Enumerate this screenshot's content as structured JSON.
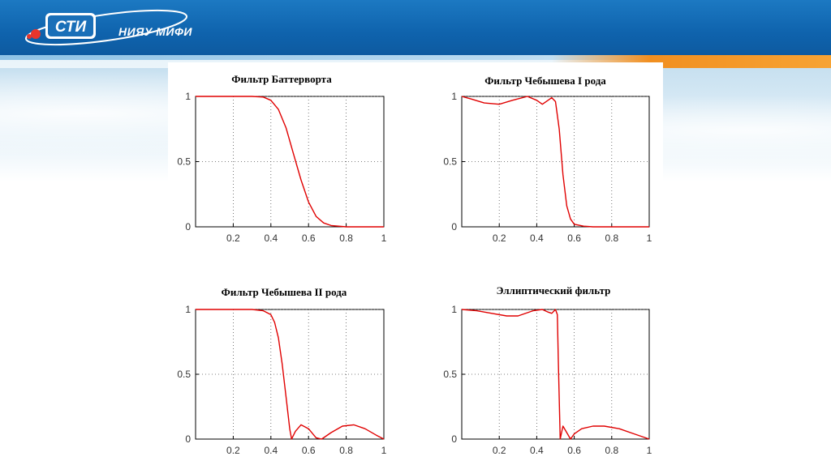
{
  "header": {
    "logo_text": "СТИ",
    "logo_subtitle": "НИЯУ МИФИ",
    "brand_color": "#0f63ad",
    "accent_color": "#f18f20"
  },
  "chart_data": [
    {
      "type": "line",
      "title": "Фильтр Баттерворта",
      "xlim": [
        0,
        1
      ],
      "ylim": [
        0,
        1
      ],
      "xticks": [
        "0.2",
        "0.4",
        "0.6",
        "0.8",
        "1"
      ],
      "yticks": [
        "0",
        "0.5",
        "1"
      ],
      "grid": true,
      "line_color": "#e00000",
      "x": [
        0.0,
        0.3,
        0.36,
        0.4,
        0.44,
        0.48,
        0.52,
        0.56,
        0.6,
        0.64,
        0.68,
        0.72,
        0.8,
        1.0
      ],
      "y": [
        1.0,
        1.0,
        0.995,
        0.97,
        0.9,
        0.76,
        0.56,
        0.36,
        0.19,
        0.08,
        0.03,
        0.01,
        0.0,
        0.0
      ]
    },
    {
      "type": "line",
      "title": "Фильтр Чебышева I рода",
      "xlim": [
        0,
        1
      ],
      "ylim": [
        0,
        1
      ],
      "xticks": [
        "0.2",
        "0.4",
        "0.6",
        "0.8",
        "1"
      ],
      "yticks": [
        "0",
        "0.5",
        "1"
      ],
      "grid": true,
      "line_color": "#e00000",
      "x": [
        0.0,
        0.05,
        0.12,
        0.2,
        0.27,
        0.35,
        0.4,
        0.43,
        0.46,
        0.48,
        0.5,
        0.52,
        0.54,
        0.56,
        0.58,
        0.6,
        0.65,
        0.7,
        0.8,
        1.0
      ],
      "y": [
        1.0,
        0.98,
        0.95,
        0.94,
        0.97,
        1.0,
        0.97,
        0.94,
        0.97,
        0.99,
        0.96,
        0.75,
        0.4,
        0.16,
        0.06,
        0.02,
        0.005,
        0.0,
        0.0,
        0.0
      ]
    },
    {
      "type": "line",
      "title": "Фильтр Чебышева II рода",
      "xlim": [
        0,
        1
      ],
      "ylim": [
        0,
        1
      ],
      "xticks": [
        "0.2",
        "0.4",
        "0.6",
        "0.8",
        "1"
      ],
      "yticks": [
        "0",
        "0.5",
        "1"
      ],
      "grid": true,
      "line_color": "#e00000",
      "x": [
        0.0,
        0.3,
        0.36,
        0.4,
        0.42,
        0.44,
        0.46,
        0.48,
        0.5,
        0.51,
        0.53,
        0.56,
        0.6,
        0.64,
        0.67,
        0.72,
        0.78,
        0.84,
        0.9,
        0.96,
        1.0
      ],
      "y": [
        1.0,
        1.0,
        0.99,
        0.96,
        0.9,
        0.78,
        0.58,
        0.33,
        0.08,
        0.0,
        0.06,
        0.11,
        0.08,
        0.01,
        0.0,
        0.05,
        0.1,
        0.11,
        0.08,
        0.03,
        0.0
      ]
    },
    {
      "type": "line",
      "title": "Эллиптический фильтр",
      "xlim": [
        0,
        1
      ],
      "ylim": [
        0,
        1
      ],
      "xticks": [
        "0.2",
        "0.4",
        "0.6",
        "0.8",
        "1"
      ],
      "yticks": [
        "0",
        "0.5",
        "1"
      ],
      "grid": true,
      "line_color": "#e00000",
      "x": [
        0.0,
        0.08,
        0.16,
        0.24,
        0.3,
        0.38,
        0.43,
        0.46,
        0.48,
        0.5,
        0.51,
        0.515,
        0.525,
        0.54,
        0.56,
        0.58,
        0.6,
        0.64,
        0.7,
        0.76,
        0.84,
        0.92,
        1.0
      ],
      "y": [
        1.0,
        0.99,
        0.97,
        0.95,
        0.95,
        0.99,
        1.0,
        0.98,
        0.97,
        1.0,
        0.96,
        0.6,
        0.0,
        0.1,
        0.05,
        0.0,
        0.04,
        0.08,
        0.1,
        0.1,
        0.08,
        0.04,
        0.0
      ]
    }
  ]
}
